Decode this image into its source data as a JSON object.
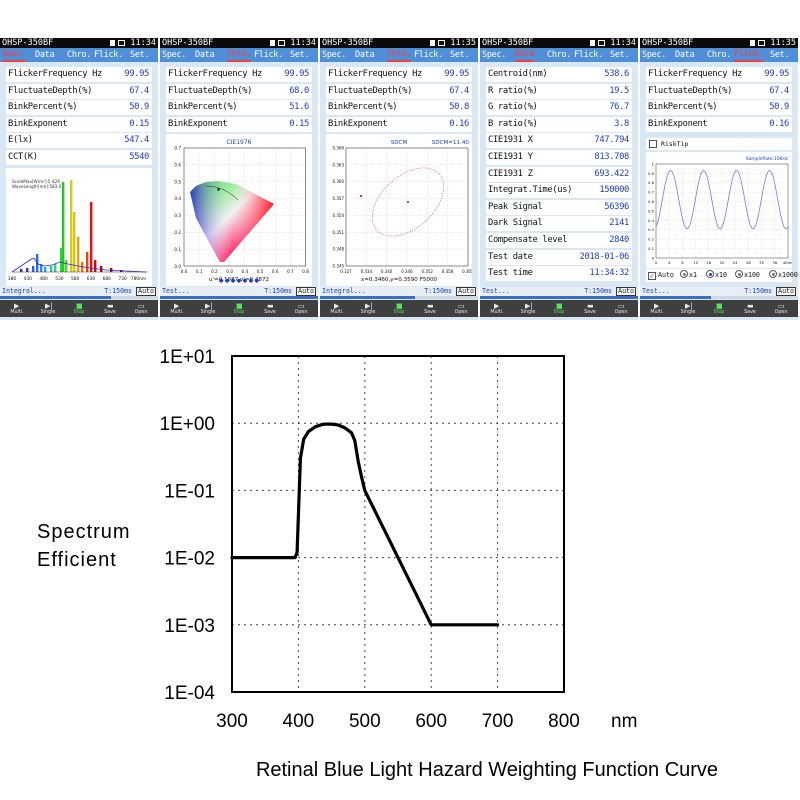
{
  "device": {
    "model": "OHSP-350BF",
    "tabs": [
      "Spec.",
      "Data",
      "Chro.",
      "Flick.",
      "Set."
    ],
    "toolbar": [
      {
        "label": "Multi.",
        "icon": "play-icon"
      },
      {
        "label": "Single",
        "icon": "step-icon"
      },
      {
        "label": "Stop",
        "icon": "stop-icon"
      },
      {
        "label": "Save",
        "icon": "save-icon"
      },
      {
        "label": "Open",
        "icon": "open-icon"
      }
    ],
    "colors": {
      "tabbar": "#4f8fd8",
      "active_tab": "#ff3a3a",
      "value_text": "#1a3fbf",
      "panel": "#d8e9f5"
    }
  },
  "screens": [
    {
      "time": "11:34",
      "active_tab": "Spec.",
      "rows": [
        {
          "label": "FlickerFrequency Hz",
          "value": "99.95"
        },
        {
          "label": "FluctuateDepth(%)",
          "value": "67.4"
        },
        {
          "label": "BinkPercent(%)",
          "value": "50.9"
        },
        {
          "label": "BinkExponent",
          "value": "0.15"
        },
        {
          "label": "E(lx)",
          "value": "547.4"
        },
        {
          "label": "CCT(K)",
          "value": "5540"
        }
      ],
      "plot": {
        "info_line1": "ScaleMax[W/m²]:5.429",
        "info_line2": "WaveLength[nm]:583.0",
        "x_ticks": [
          "380",
          "430",
          "480",
          "530",
          "580",
          "630",
          "680",
          "730",
          "780nm"
        ]
      },
      "bottom": {
        "label": "Integral...",
        "t": "T:150ms",
        "auto": "Auto",
        "progress": 0.7
      }
    },
    {
      "time": "11:34",
      "active_tab": "Chro.",
      "rows": [
        {
          "label": "FlickerFrequency Hz",
          "value": "99.95"
        },
        {
          "label": "FluctuateDepth(%)",
          "value": "68.0"
        },
        {
          "label": "BinkPercent(%)",
          "value": "51.6"
        },
        {
          "label": "BinkExponent",
          "value": "0.15"
        }
      ],
      "plot": {
        "title": "CIE1976",
        "readout": "u'=0.1987 v'=0.4872",
        "y_ticks": [
          "0.7",
          "0.6",
          "0.5",
          "0.4",
          "0.3",
          "0.2",
          "0.1",
          "0.0"
        ],
        "x_ticks": [
          "0.0",
          "0.1",
          "0.2",
          "0.3",
          "0.4",
          "0.5",
          "0.6",
          "0.7",
          "0.8"
        ],
        "pager": "● ● ● ● ● ● ●"
      },
      "bottom": {
        "label": "Test...",
        "t": "T:150ms",
        "auto": "Auto",
        "progress": 1.0
      }
    },
    {
      "time": "11:35",
      "active_tab": "Chro.",
      "rows": [
        {
          "label": "FlickerFrequency Hz",
          "value": "99.95"
        },
        {
          "label": "FluctuateDepth(%)",
          "value": "67.4"
        },
        {
          "label": "BinkPercent(%)",
          "value": "50.8"
        },
        {
          "label": "BinkExponent",
          "value": "0.16"
        }
      ],
      "plot": {
        "title": "SDCM",
        "title_right": "SDCM=11.40",
        "readout": "x=0.3460,y=0.3590 F5000",
        "y_ticks": [
          "0.366",
          "0.363",
          "0.360",
          "0.357",
          "0.354",
          "0.351",
          "0.348",
          "0.345"
        ],
        "x_ticks": [
          "0.327",
          "0.334",
          "0.340",
          "0.346",
          "0.352",
          "0.358",
          "0.365"
        ]
      },
      "bottom": {
        "label": "Integral...",
        "t": "T:150ms",
        "auto": "Auto",
        "progress": 0.6
      }
    },
    {
      "time": "11:34",
      "active_tab": "Data",
      "rows": [
        {
          "label": "Centroid(nm)",
          "value": "538.6"
        },
        {
          "label": "R ratio(%)",
          "value": "19.5"
        },
        {
          "label": "G ratio(%)",
          "value": "76.7"
        },
        {
          "label": "B ratio(%)",
          "value": "3.8"
        },
        {
          "label": "CIE1931 X",
          "value": "747.794"
        },
        {
          "label": "CIE1931 Y",
          "value": "813.708"
        },
        {
          "label": "CIE1931 Z",
          "value": "693.422"
        },
        {
          "label": "Integrat.Time(us)",
          "value": "150000"
        },
        {
          "label": "Peak Signal",
          "value": "56396"
        },
        {
          "label": "Dark Signal",
          "value": "2141"
        },
        {
          "label": "Compensate level",
          "value": "2840"
        },
        {
          "label": "Test date",
          "value": "2018-01-06"
        },
        {
          "label": "Test time",
          "value": "11:34:32"
        }
      ],
      "bottom": {
        "label": "Test...",
        "t": "T:150ms",
        "auto": "Auto",
        "progress": 1.0
      }
    },
    {
      "time": "11:35",
      "active_tab": "Flick.",
      "rows": [
        {
          "label": "FlickerFrequency Hz",
          "value": "99.95"
        },
        {
          "label": "FluctuateDepth(%)",
          "value": "67.4"
        },
        {
          "label": "BinkPercent(%)",
          "value": "50.9"
        },
        {
          "label": "BinkExponent",
          "value": "0.16"
        }
      ],
      "risktip": "RiskTip",
      "plot": {
        "sample_rate": "SampleRate:10KHz",
        "y_ticks": [
          "1",
          "0.9",
          "0.8",
          "0.7",
          "0.6",
          "0.5",
          "0.4",
          "0.3",
          "0.2",
          "0.1",
          "0"
        ],
        "x_ticks": [
          "0",
          "4",
          "8",
          "12",
          "16",
          "20",
          "24",
          "28",
          "32",
          "36",
          "40ms"
        ]
      },
      "scale_options": [
        {
          "label": "Auto",
          "kind": "check",
          "selected": true
        },
        {
          "label": "x1",
          "kind": "radio",
          "selected": false
        },
        {
          "label": "x10",
          "kind": "radio",
          "selected": true
        },
        {
          "label": "x100",
          "kind": "radio",
          "selected": false
        },
        {
          "label": "x1000",
          "kind": "radio",
          "selected": false
        }
      ],
      "bottom": {
        "label": "Test...",
        "t": "T:150ms",
        "auto": "Auto",
        "progress": 0.45
      }
    }
  ],
  "chart_data": {
    "type": "line",
    "title": "Retinal Blue Light Hazard Weighting Function Curve",
    "ylabel": [
      "Spectrum",
      "Efficient"
    ],
    "xlabel": "nm",
    "y_scale": "log",
    "ylim": [
      0.0001,
      10
    ],
    "xlim": [
      300,
      800
    ],
    "y_tick_labels": [
      "1E+01",
      "1E+00",
      "1E-01",
      "1E-02",
      "1E-03",
      "1E-04"
    ],
    "x_tick_labels": [
      "300",
      "400",
      "500",
      "600",
      "700",
      "800"
    ],
    "grid": true,
    "line_color": "#000000",
    "series": [
      {
        "x": [
          300,
          380,
          390,
          395,
          398,
          403,
          408,
          415,
          425,
          435,
          440,
          450,
          460,
          470,
          480,
          485,
          490,
          495,
          500,
          600,
          700
        ],
        "values": [
          0.01,
          0.01,
          0.01,
          0.01,
          0.012,
          0.3,
          0.58,
          0.75,
          0.88,
          0.95,
          0.97,
          0.97,
          0.94,
          0.85,
          0.72,
          0.55,
          0.27,
          0.16,
          0.1,
          0.001,
          0.001
        ]
      }
    ]
  }
}
